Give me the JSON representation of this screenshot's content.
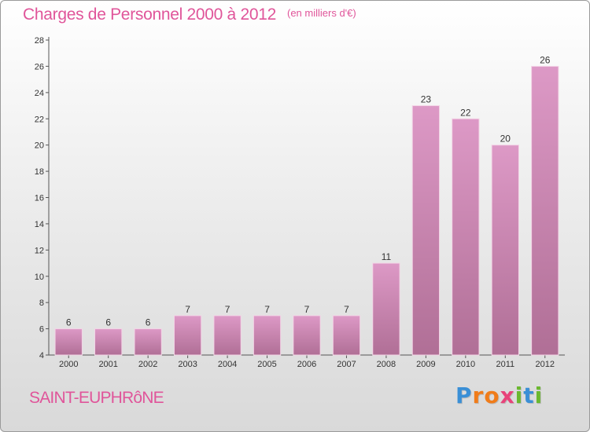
{
  "chart_data": {
    "type": "bar",
    "title": "Charges de Personnel 2000 à 2012",
    "subtitle": "(en milliers d'€)",
    "categories": [
      "2000",
      "2001",
      "2002",
      "2003",
      "2004",
      "2005",
      "2006",
      "2007",
      "2008",
      "2009",
      "2010",
      "2011",
      "2012"
    ],
    "values": [
      6,
      6,
      6,
      7,
      7,
      7,
      7,
      7,
      11,
      23,
      22,
      20,
      26
    ],
    "ylim": [
      4,
      28
    ],
    "yticks": [
      4,
      6,
      8,
      10,
      12,
      14,
      16,
      18,
      20,
      22,
      24,
      26,
      28
    ],
    "grid": false,
    "bar_color": "#dd99c6",
    "bar_color_dark": "#b06f96"
  },
  "commune": "SAINT-EUPHRôNE",
  "logo": {
    "letters": [
      "P",
      "r",
      "o",
      "x",
      "i",
      "t",
      "i"
    ],
    "colors": [
      "#3a8fd6",
      "#f07c1a",
      "#f07c1a",
      "#e8437a",
      "#6bb82f",
      "#3a8fd6",
      "#6bb82f"
    ]
  },
  "colors": {
    "title": "#e0559a",
    "axis": "#555555"
  }
}
